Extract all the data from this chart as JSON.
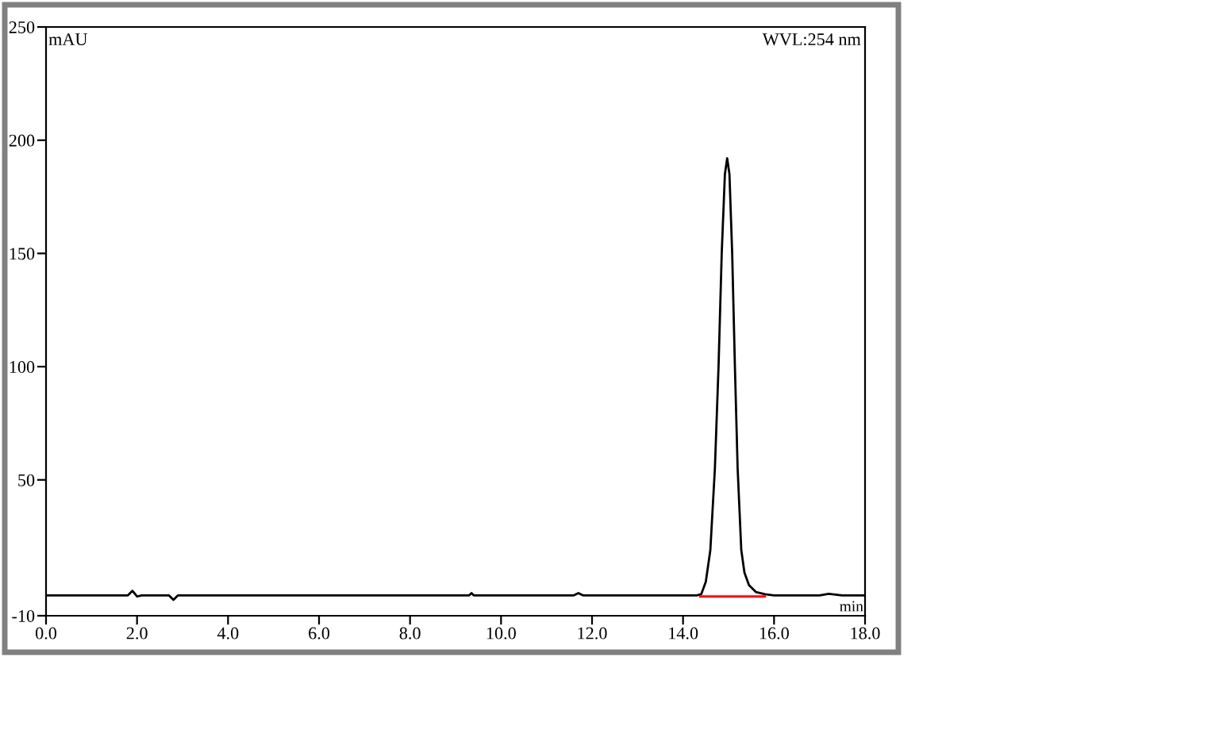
{
  "chart_data": {
    "type": "line",
    "xlabel": "min",
    "ylabel": "mAU",
    "annotations": [
      "WVL:254 nm"
    ],
    "xlim": [
      0,
      18
    ],
    "xticks": [
      {
        "value": 0,
        "label": "0.0"
      },
      {
        "value": 2,
        "label": "2.0"
      },
      {
        "value": 4,
        "label": "4.0"
      },
      {
        "value": 6,
        "label": "6.0"
      },
      {
        "value": 8,
        "label": "8.0"
      },
      {
        "value": 10,
        "label": "10.0"
      },
      {
        "value": 12,
        "label": "12.0"
      },
      {
        "value": 14,
        "label": "14.0"
      },
      {
        "value": 16,
        "label": "16.0"
      },
      {
        "value": 18,
        "label": "18.0"
      }
    ],
    "ylim": [
      -10,
      250
    ],
    "yticks": [
      -10,
      50,
      100,
      150,
      200,
      250
    ],
    "grid": false,
    "legend": false,
    "marker": "none",
    "line_style": "solid",
    "series": [
      {
        "color": "#000000",
        "x": [
          0,
          1.8,
          1.9,
          2.0,
          2.1,
          2.7,
          2.8,
          2.9,
          9.3,
          9.35,
          9.4,
          11.6,
          11.7,
          11.8,
          14.3,
          14.4,
          14.5,
          14.6,
          14.7,
          14.78,
          14.85,
          14.92,
          14.97,
          15.02,
          15.08,
          15.14,
          15.2,
          15.28,
          15.35,
          15.45,
          15.6,
          15.8,
          16.0,
          17.0,
          17.2,
          17.5,
          18
        ],
        "values": [
          -1,
          -1,
          1,
          -1.5,
          -1,
          -1,
          -3,
          -1,
          -1,
          0,
          -1,
          -1,
          0,
          -1,
          -1,
          -0.5,
          5,
          19,
          55,
          100,
          150,
          185,
          192,
          185,
          150,
          100,
          55,
          19,
          9,
          3.5,
          0.5,
          -0.5,
          -1,
          -1,
          -0.3,
          -1,
          -1
        ]
      },
      {
        "color": "#ff0000",
        "x": [
          14.38,
          15.8
        ],
        "values": [
          -1.5,
          -1.5
        ]
      }
    ]
  }
}
